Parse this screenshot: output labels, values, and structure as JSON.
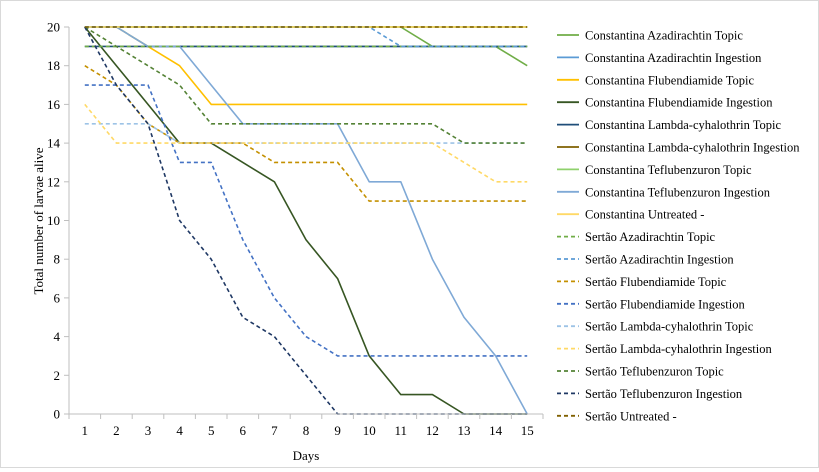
{
  "chart_data": {
    "type": "line",
    "xlabel": "Days",
    "ylabel": "Total number of larvae alive",
    "ylim": [
      0,
      20
    ],
    "yticks": [
      0,
      2,
      4,
      6,
      8,
      10,
      12,
      14,
      16,
      18,
      20
    ],
    "x": [
      1,
      2,
      3,
      4,
      5,
      6,
      7,
      8,
      9,
      10,
      11,
      12,
      13,
      14,
      15
    ],
    "grid": false,
    "legend_position": "right",
    "series": [
      {
        "name": "Constantina Azadirachtin Topic",
        "color": "#70ad47",
        "dash": "solid",
        "values": [
          20,
          20,
          20,
          20,
          20,
          20,
          20,
          20,
          20,
          20,
          20,
          19,
          19,
          19,
          18
        ]
      },
      {
        "name": "Constantina Azadirachtin Ingestion",
        "color": "#5b9bd5",
        "dash": "solid",
        "values": [
          20,
          20,
          19,
          19,
          19,
          19,
          19,
          19,
          19,
          19,
          19,
          19,
          19,
          19,
          19
        ]
      },
      {
        "name": "Constantina Flubendiamide Topic",
        "color": "#ffc000",
        "dash": "solid",
        "values": [
          20,
          20,
          19,
          18,
          16,
          16,
          16,
          16,
          16,
          16,
          16,
          16,
          16,
          16,
          16
        ]
      },
      {
        "name": "Constantina Flubendiamide Ingestion",
        "color": "#375623",
        "dash": "solid",
        "values": [
          20,
          18,
          16,
          14,
          14,
          13,
          12,
          9,
          7,
          3,
          1,
          1,
          0,
          0,
          0
        ]
      },
      {
        "name": "Constantina Lambda-cyhalothrin Topic",
        "color": "#1f4e79",
        "dash": "solid",
        "values": [
          19,
          19,
          19,
          19,
          19,
          19,
          19,
          19,
          19,
          19,
          19,
          19,
          19,
          19,
          19
        ]
      },
      {
        "name": "Constantina Lambda-cyhalothrin Ingestion",
        "color": "#7f6000",
        "dash": "solid",
        "values": [
          20,
          20,
          20,
          20,
          20,
          20,
          20,
          20,
          20,
          20,
          20,
          20,
          20,
          20,
          20
        ]
      },
      {
        "name": "Constantina Teflubenzuron Topic",
        "color": "#8fd16c",
        "dash": "solid",
        "values": [
          20,
          20,
          20,
          20,
          20,
          20,
          20,
          20,
          20,
          20,
          20,
          20,
          20,
          20,
          20
        ]
      },
      {
        "name": "Constantina Teflubenzuron Ingestion",
        "color": "#7fa9d6",
        "dash": "solid",
        "values": [
          20,
          20,
          19,
          19,
          17,
          15,
          15,
          15,
          15,
          12,
          12,
          8,
          5,
          3,
          0
        ]
      },
      {
        "name": "Constantina Untreated -",
        "color": "#ffd966",
        "dash": "solid",
        "values": [
          20,
          20,
          20,
          20,
          20,
          20,
          20,
          20,
          20,
          20,
          20,
          20,
          20,
          20,
          20
        ]
      },
      {
        "name": "Sertão Azadirachtin Topic",
        "color": "#70ad47",
        "dash": "dash",
        "values": [
          19,
          19,
          19,
          19,
          19,
          19,
          19,
          19,
          19,
          19,
          19,
          19,
          19,
          19,
          19
        ]
      },
      {
        "name": "Sertão Azadirachtin Ingestion",
        "color": "#5b9bd5",
        "dash": "dash",
        "values": [
          20,
          20,
          20,
          20,
          20,
          20,
          20,
          20,
          20,
          20,
          19,
          19,
          19,
          19,
          19
        ]
      },
      {
        "name": "Sertão Flubendiamide Topic",
        "color": "#c49000",
        "dash": "dash",
        "values": [
          18,
          17,
          15,
          14,
          14,
          14,
          13,
          13,
          13,
          11,
          11,
          11,
          11,
          11,
          11
        ]
      },
      {
        "name": "Sertão Flubendiamide Ingestion",
        "color": "#4472c4",
        "dash": "dash",
        "values": [
          17,
          17,
          17,
          13,
          13,
          9,
          6,
          4,
          3,
          3,
          3,
          3,
          3,
          3,
          3
        ]
      },
      {
        "name": "Sertão Lambda-cyhalothrin Topic",
        "color": "#9dc3e6",
        "dash": "dash",
        "values": [
          15,
          15,
          15,
          14,
          14,
          14,
          14,
          14,
          14,
          14,
          14,
          14,
          14,
          14,
          14
        ]
      },
      {
        "name": "Sertão Lambda-cyhalothrin Ingestion",
        "color": "#ffd966",
        "dash": "dash",
        "values": [
          16,
          14,
          14,
          14,
          14,
          14,
          14,
          14,
          14,
          14,
          14,
          14,
          13,
          12,
          12
        ]
      },
      {
        "name": "Sertão Teflubenzuron Topic",
        "color": "#548235",
        "dash": "dash",
        "values": [
          20,
          19,
          18,
          17,
          15,
          15,
          15,
          15,
          15,
          15,
          15,
          15,
          14,
          14,
          14
        ]
      },
      {
        "name": "Sertão Teflubenzuron Ingestion",
        "color": "#1f3864",
        "dash": "dash",
        "values": [
          20,
          17,
          15,
          10,
          8,
          5,
          4,
          2,
          0,
          0,
          0,
          0,
          0,
          0,
          0
        ]
      },
      {
        "name": "Sertão Untreated -",
        "color": "#806000",
        "dash": "dash",
        "values": [
          20,
          20,
          20,
          20,
          20,
          20,
          20,
          20,
          20,
          20,
          20,
          20,
          20,
          20,
          20
        ]
      }
    ]
  }
}
